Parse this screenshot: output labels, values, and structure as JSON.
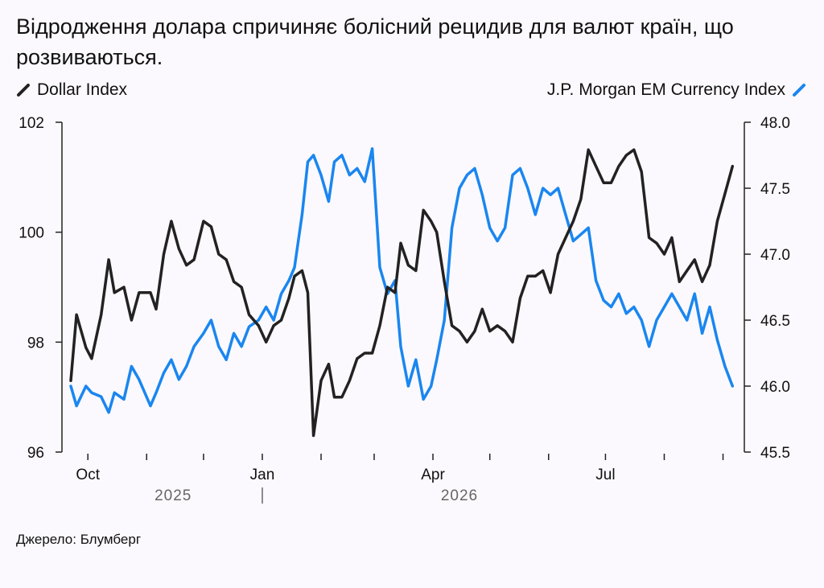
{
  "title": "Відродження долара спричиняє болісний рецидив для валют країн, що розвиваються.",
  "source": "Джерело: Блумберг",
  "colors": {
    "dollar": "#222222",
    "em": "#1a86f0",
    "axis": "#222222"
  },
  "chart_data": {
    "type": "line",
    "x_axis": {
      "type": "date",
      "range": [
        "2025-09-22",
        "2026-09-08"
      ],
      "month_labels": [
        {
          "label": "Oct",
          "date": "2025-10-01"
        },
        {
          "label": "Jan",
          "date": "2026-01-01"
        },
        {
          "label": "Apr",
          "date": "2026-04-01"
        },
        {
          "label": "Jul",
          "date": "2026-07-01"
        }
      ],
      "minor_ticks": [
        "2025-11-01",
        "2025-12-01",
        "2026-02-01",
        "2026-03-01",
        "2026-05-01",
        "2026-06-01",
        "2026-08-01",
        "2026-09-01"
      ],
      "year_labels": [
        {
          "label": "2025",
          "date": "2025-11-15"
        },
        {
          "label": "2026",
          "date": "2026-04-15"
        }
      ],
      "year_separator_date": "2026-01-01"
    },
    "y_left": {
      "ylim": [
        96,
        102
      ],
      "ticks": [
        96,
        98,
        100,
        102
      ]
    },
    "y_right": {
      "ylim": [
        45.5,
        48.0
      ],
      "ticks": [
        "45.5",
        "46.0",
        "46.5",
        "47.0",
        "47.5",
        "48.0"
      ]
    },
    "series": [
      {
        "name": "Dollar Index",
        "axis": "left",
        "color": "#222222",
        "points": [
          [
            "2025-09-22",
            97.3
          ],
          [
            "2025-09-25",
            98.5
          ],
          [
            "2025-09-30",
            97.9
          ],
          [
            "2025-10-03",
            97.7
          ],
          [
            "2025-10-08",
            98.5
          ],
          [
            "2025-10-12",
            99.5
          ],
          [
            "2025-10-15",
            98.9
          ],
          [
            "2025-10-20",
            99.0
          ],
          [
            "2025-10-24",
            98.4
          ],
          [
            "2025-10-28",
            98.9
          ],
          [
            "2025-11-03",
            98.9
          ],
          [
            "2025-11-06",
            98.6
          ],
          [
            "2025-11-10",
            99.6
          ],
          [
            "2025-11-14",
            100.2
          ],
          [
            "2025-11-18",
            99.7
          ],
          [
            "2025-11-22",
            99.4
          ],
          [
            "2025-11-26",
            99.5
          ],
          [
            "2025-12-01",
            100.2
          ],
          [
            "2025-12-05",
            100.1
          ],
          [
            "2025-12-09",
            99.6
          ],
          [
            "2025-12-13",
            99.5
          ],
          [
            "2025-12-17",
            99.1
          ],
          [
            "2025-12-21",
            99.0
          ],
          [
            "2025-12-25",
            98.5
          ],
          [
            "2025-12-30",
            98.3
          ],
          [
            "2026-01-03",
            98.0
          ],
          [
            "2026-01-07",
            98.3
          ],
          [
            "2026-01-11",
            98.4
          ],
          [
            "2026-01-15",
            98.8
          ],
          [
            "2026-01-18",
            99.2
          ],
          [
            "2026-01-22",
            99.3
          ],
          [
            "2026-01-25",
            98.9
          ],
          [
            "2026-01-28",
            96.3
          ],
          [
            "2026-02-01",
            97.3
          ],
          [
            "2026-02-05",
            97.6
          ],
          [
            "2026-02-08",
            97.0
          ],
          [
            "2026-02-12",
            97.0
          ],
          [
            "2026-02-16",
            97.3
          ],
          [
            "2026-02-20",
            97.7
          ],
          [
            "2026-02-24",
            97.8
          ],
          [
            "2026-02-28",
            97.8
          ],
          [
            "2026-03-04",
            98.3
          ],
          [
            "2026-03-08",
            99.0
          ],
          [
            "2026-03-12",
            98.9
          ],
          [
            "2026-03-15",
            99.8
          ],
          [
            "2026-03-19",
            99.4
          ],
          [
            "2026-03-23",
            99.3
          ],
          [
            "2026-03-27",
            100.4
          ],
          [
            "2026-03-31",
            100.2
          ],
          [
            "2026-04-03",
            100.0
          ],
          [
            "2026-04-07",
            99.1
          ],
          [
            "2026-04-11",
            98.3
          ],
          [
            "2026-04-15",
            98.2
          ],
          [
            "2026-04-19",
            98.0
          ],
          [
            "2026-04-23",
            98.2
          ],
          [
            "2026-04-27",
            98.6
          ],
          [
            "2026-05-01",
            98.2
          ],
          [
            "2026-05-05",
            98.3
          ],
          [
            "2026-05-09",
            98.2
          ],
          [
            "2026-05-13",
            98.0
          ],
          [
            "2026-05-17",
            98.8
          ],
          [
            "2026-05-21",
            99.2
          ],
          [
            "2026-05-25",
            99.2
          ],
          [
            "2026-05-29",
            99.3
          ],
          [
            "2026-06-02",
            98.9
          ],
          [
            "2026-06-06",
            99.6
          ],
          [
            "2026-06-10",
            99.9
          ],
          [
            "2026-06-14",
            100.2
          ],
          [
            "2026-06-18",
            100.6
          ],
          [
            "2026-06-22",
            101.5
          ],
          [
            "2026-06-26",
            101.2
          ],
          [
            "2026-06-30",
            100.9
          ],
          [
            "2026-07-04",
            100.9
          ],
          [
            "2026-07-08",
            101.2
          ],
          [
            "2026-07-12",
            101.4
          ],
          [
            "2026-07-16",
            101.5
          ],
          [
            "2026-07-20",
            101.1
          ],
          [
            "2026-07-24",
            99.9
          ],
          [
            "2026-07-28",
            99.8
          ],
          [
            "2026-08-01",
            99.6
          ],
          [
            "2026-08-05",
            99.9
          ],
          [
            "2026-08-09",
            99.1
          ],
          [
            "2026-08-13",
            99.3
          ],
          [
            "2026-08-17",
            99.5
          ],
          [
            "2026-08-21",
            99.1
          ],
          [
            "2026-08-25",
            99.4
          ],
          [
            "2026-08-29",
            100.2
          ],
          [
            "2026-09-02",
            100.7
          ],
          [
            "2026-09-06",
            101.2
          ]
        ]
      },
      {
        "name": "J.P. Morgan EM Currency Index",
        "axis": "right",
        "color": "#1a86f0",
        "points": [
          [
            "2025-09-22",
            46.0
          ],
          [
            "2025-09-25",
            45.85
          ],
          [
            "2025-09-30",
            46.0
          ],
          [
            "2025-10-03",
            45.95
          ],
          [
            "2025-10-08",
            45.92
          ],
          [
            "2025-10-12",
            45.8
          ],
          [
            "2025-10-15",
            45.95
          ],
          [
            "2025-10-20",
            45.9
          ],
          [
            "2025-10-24",
            46.15
          ],
          [
            "2025-10-28",
            46.05
          ],
          [
            "2025-11-03",
            45.85
          ],
          [
            "2025-11-06",
            45.95
          ],
          [
            "2025-11-10",
            46.1
          ],
          [
            "2025-11-14",
            46.2
          ],
          [
            "2025-11-18",
            46.05
          ],
          [
            "2025-11-22",
            46.15
          ],
          [
            "2025-11-26",
            46.3
          ],
          [
            "2025-12-01",
            46.4
          ],
          [
            "2025-12-05",
            46.5
          ],
          [
            "2025-12-09",
            46.3
          ],
          [
            "2025-12-13",
            46.2
          ],
          [
            "2025-12-17",
            46.4
          ],
          [
            "2025-12-21",
            46.3
          ],
          [
            "2025-12-25",
            46.45
          ],
          [
            "2025-12-30",
            46.5
          ],
          [
            "2026-01-03",
            46.6
          ],
          [
            "2026-01-07",
            46.5
          ],
          [
            "2026-01-11",
            46.7
          ],
          [
            "2026-01-15",
            46.8
          ],
          [
            "2026-01-18",
            46.9
          ],
          [
            "2026-01-22",
            47.3
          ],
          [
            "2026-01-25",
            47.7
          ],
          [
            "2026-01-28",
            47.75
          ],
          [
            "2026-02-01",
            47.6
          ],
          [
            "2026-02-05",
            47.4
          ],
          [
            "2026-02-08",
            47.7
          ],
          [
            "2026-02-12",
            47.75
          ],
          [
            "2026-02-16",
            47.6
          ],
          [
            "2026-02-20",
            47.65
          ],
          [
            "2026-02-24",
            47.55
          ],
          [
            "2026-02-28",
            47.8
          ],
          [
            "2026-03-04",
            46.9
          ],
          [
            "2026-03-08",
            46.7
          ],
          [
            "2026-03-12",
            46.8
          ],
          [
            "2026-03-15",
            46.3
          ],
          [
            "2026-03-19",
            46.0
          ],
          [
            "2026-03-23",
            46.2
          ],
          [
            "2026-03-27",
            45.9
          ],
          [
            "2026-03-31",
            46.0
          ],
          [
            "2026-04-03",
            46.2
          ],
          [
            "2026-04-07",
            46.5
          ],
          [
            "2026-04-11",
            47.2
          ],
          [
            "2026-04-15",
            47.5
          ],
          [
            "2026-04-19",
            47.6
          ],
          [
            "2026-04-23",
            47.65
          ],
          [
            "2026-04-27",
            47.45
          ],
          [
            "2026-05-01",
            47.2
          ],
          [
            "2026-05-05",
            47.1
          ],
          [
            "2026-05-09",
            47.2
          ],
          [
            "2026-05-13",
            47.6
          ],
          [
            "2026-05-17",
            47.65
          ],
          [
            "2026-05-21",
            47.5
          ],
          [
            "2026-05-25",
            47.3
          ],
          [
            "2026-05-29",
            47.5
          ],
          [
            "2026-06-02",
            47.45
          ],
          [
            "2026-06-06",
            47.5
          ],
          [
            "2026-06-10",
            47.3
          ],
          [
            "2026-06-14",
            47.1
          ],
          [
            "2026-06-18",
            47.15
          ],
          [
            "2026-06-22",
            47.2
          ],
          [
            "2026-06-26",
            46.8
          ],
          [
            "2026-06-30",
            46.65
          ],
          [
            "2026-07-04",
            46.6
          ],
          [
            "2026-07-08",
            46.7
          ],
          [
            "2026-07-12",
            46.55
          ],
          [
            "2026-07-16",
            46.6
          ],
          [
            "2026-07-20",
            46.5
          ],
          [
            "2026-07-24",
            46.3
          ],
          [
            "2026-07-28",
            46.5
          ],
          [
            "2026-08-01",
            46.6
          ],
          [
            "2026-08-05",
            46.7
          ],
          [
            "2026-08-09",
            46.6
          ],
          [
            "2026-08-13",
            46.5
          ],
          [
            "2026-08-17",
            46.7
          ],
          [
            "2026-08-21",
            46.4
          ],
          [
            "2026-08-25",
            46.6
          ],
          [
            "2026-08-29",
            46.35
          ],
          [
            "2026-09-02",
            46.15
          ],
          [
            "2026-09-06",
            46.0
          ]
        ]
      }
    ],
    "grid": false,
    "legend_placement": "top"
  }
}
